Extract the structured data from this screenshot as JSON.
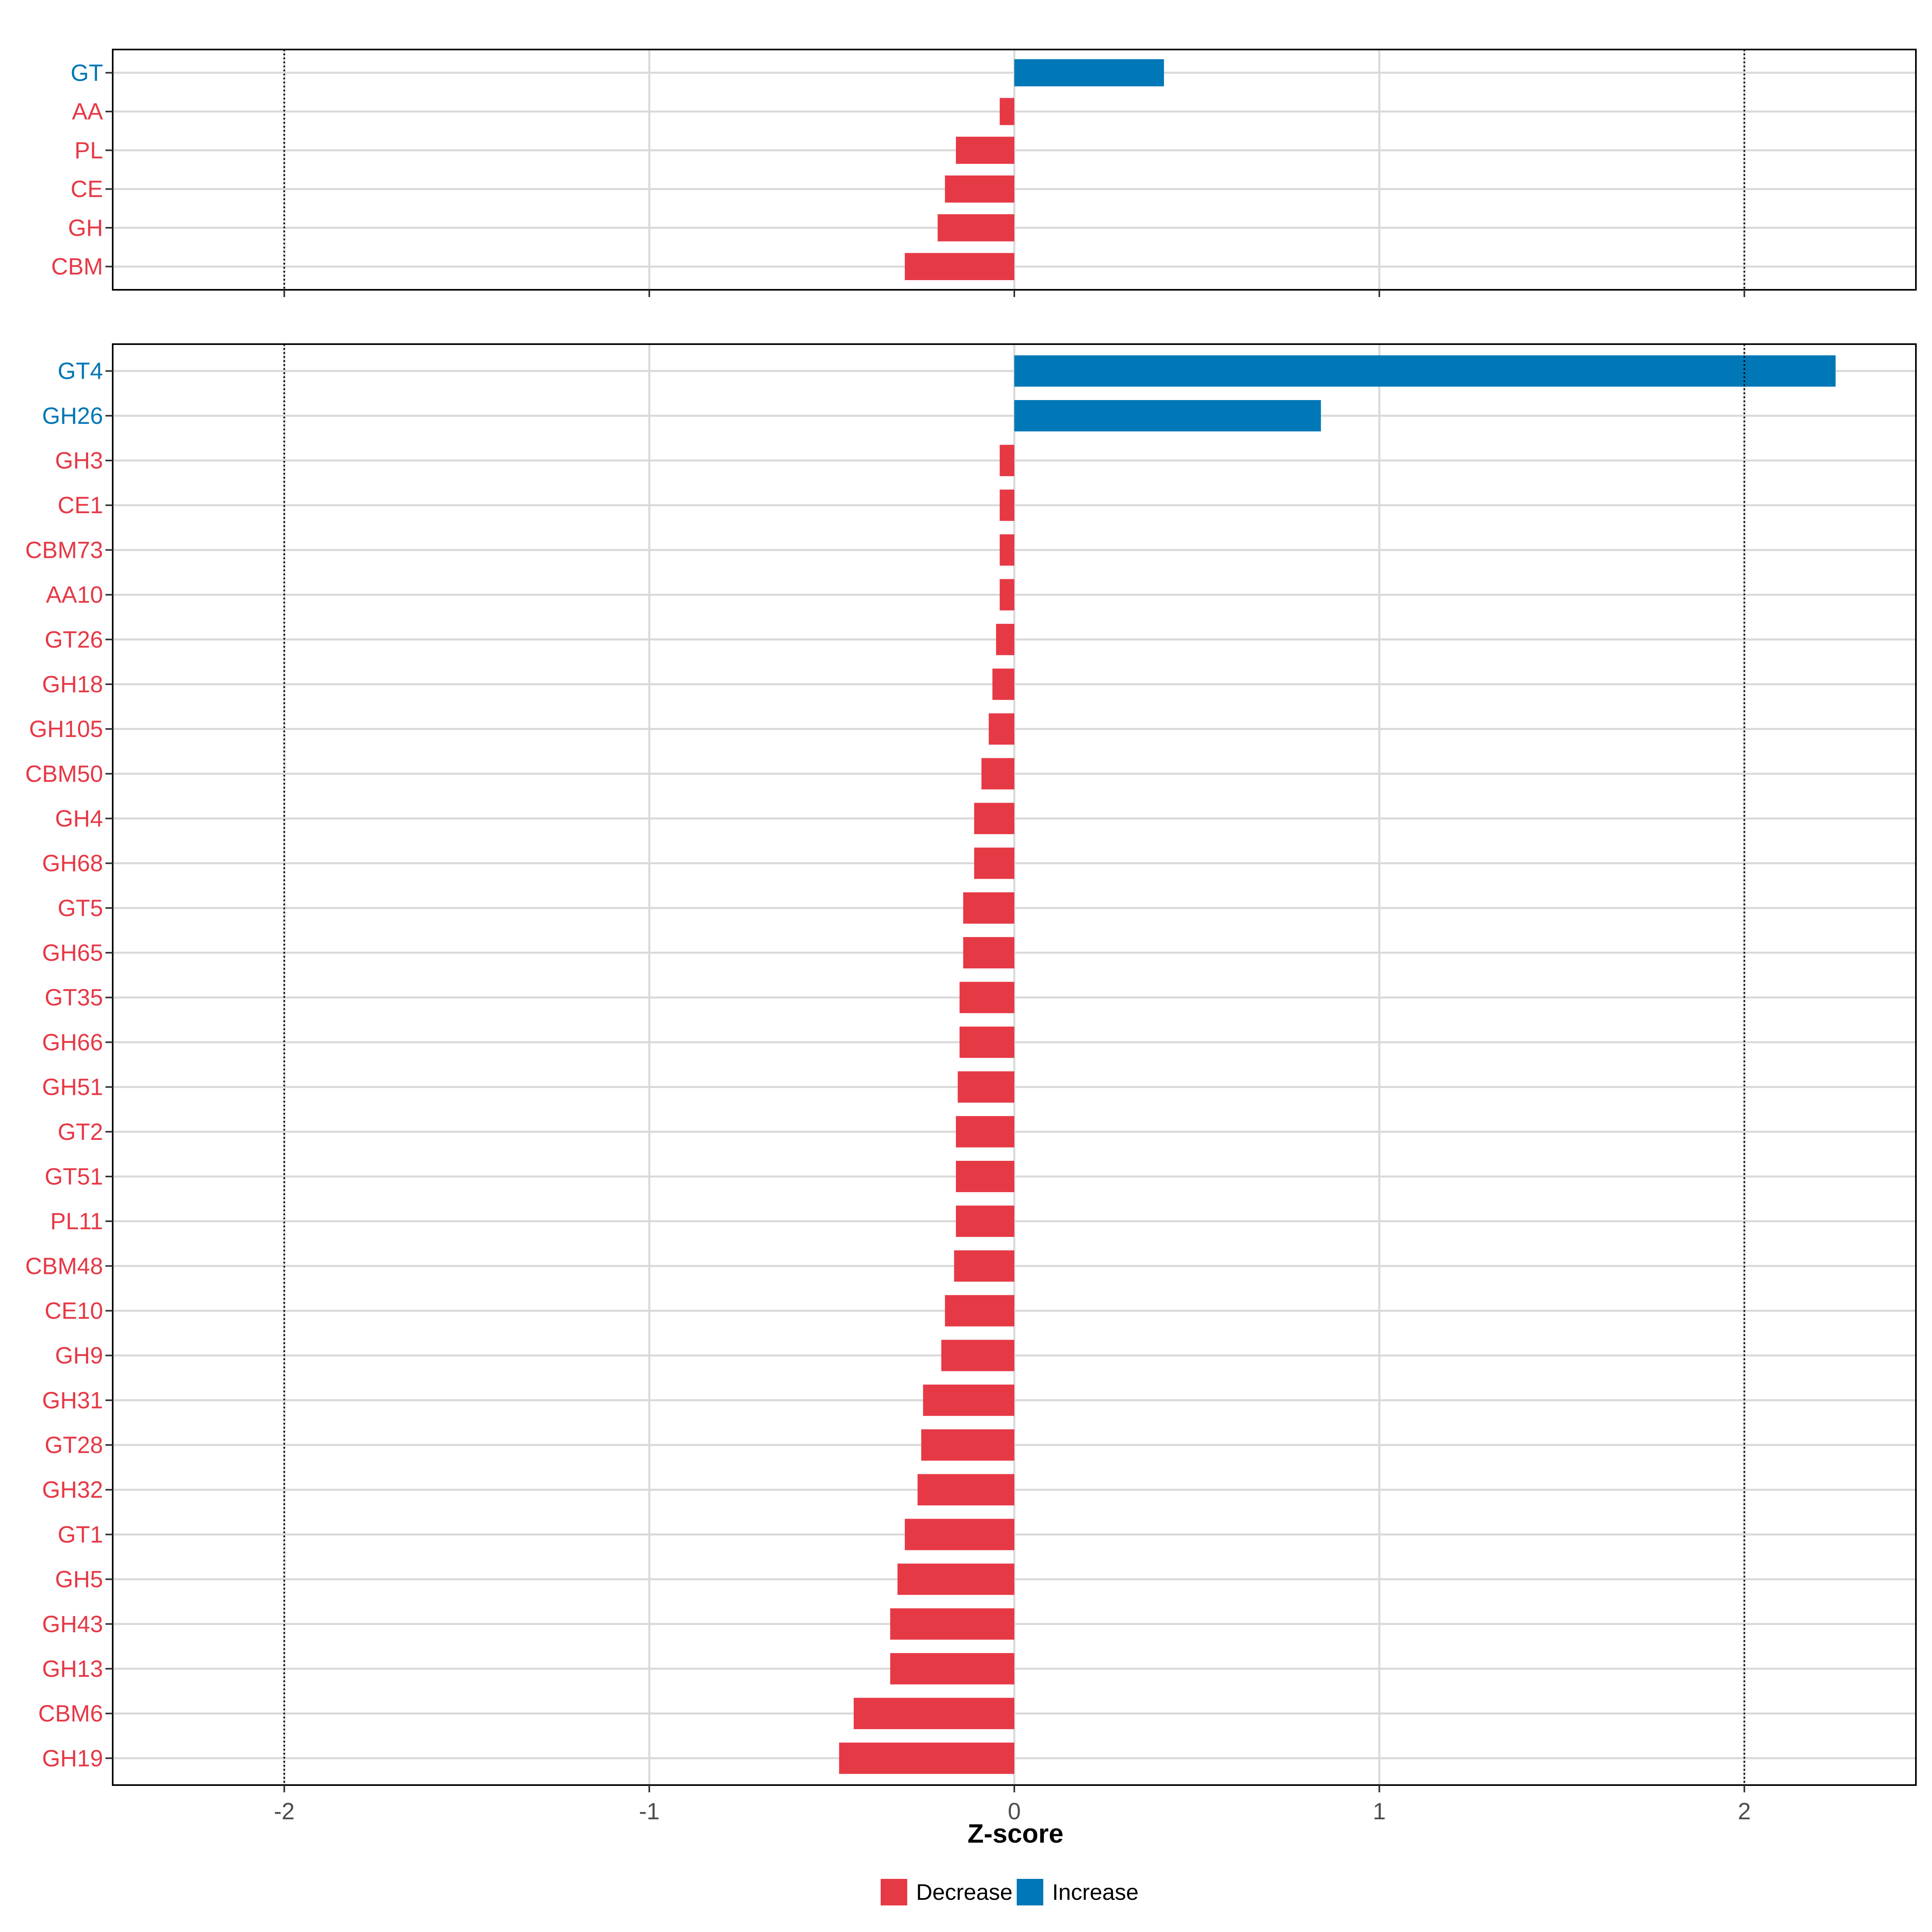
{
  "colors": {
    "decrease": "#E63946",
    "increase": "#0077B6",
    "grid": "#D9D9D9",
    "panel_border": "#000000",
    "text": "#000000"
  },
  "legend": {
    "position": "bottom",
    "items": [
      {
        "label": "Decrease",
        "color_key": "decrease"
      },
      {
        "label": "Increase",
        "color_key": "increase"
      }
    ]
  },
  "chart_data": {
    "type": "bar",
    "orientation": "horizontal",
    "xlabel": "Z-score",
    "xlim": [
      -2.47,
      2.47
    ],
    "xticks": [
      -2,
      -1,
      0,
      1,
      2
    ],
    "xtick_labels": [
      "-2",
      "-1",
      "0",
      "1",
      "2"
    ],
    "reference_lines": [
      -2,
      2
    ],
    "grid": true,
    "panels": [
      {
        "categories": [
          "GT",
          "AA",
          "PL",
          "CE",
          "GH",
          "CBM"
        ],
        "values": [
          0.41,
          -0.04,
          -0.16,
          -0.19,
          -0.21,
          -0.3
        ],
        "direction": [
          "Increase",
          "Decrease",
          "Decrease",
          "Decrease",
          "Decrease",
          "Decrease"
        ]
      },
      {
        "categories": [
          "GT4",
          "GH26",
          "GH3",
          "CE1",
          "CBM73",
          "AA10",
          "GT26",
          "GH18",
          "GH105",
          "CBM50",
          "GH4",
          "GH68",
          "GT5",
          "GH65",
          "GT35",
          "GH66",
          "GH51",
          "GT2",
          "GT51",
          "PL11",
          "CBM48",
          "CE10",
          "GH9",
          "GH31",
          "GT28",
          "GH32",
          "GT1",
          "GH5",
          "GH43",
          "GH13",
          "CBM6",
          "GH19"
        ],
        "values": [
          2.25,
          0.84,
          -0.04,
          -0.04,
          -0.04,
          -0.04,
          -0.05,
          -0.06,
          -0.07,
          -0.09,
          -0.11,
          -0.11,
          -0.14,
          -0.14,
          -0.15,
          -0.15,
          -0.155,
          -0.16,
          -0.16,
          -0.16,
          -0.165,
          -0.19,
          -0.2,
          -0.25,
          -0.255,
          -0.265,
          -0.3,
          -0.32,
          -0.34,
          -0.34,
          -0.44,
          -0.48
        ],
        "direction": [
          "Increase",
          "Increase",
          "Decrease",
          "Decrease",
          "Decrease",
          "Decrease",
          "Decrease",
          "Decrease",
          "Decrease",
          "Decrease",
          "Decrease",
          "Decrease",
          "Decrease",
          "Decrease",
          "Decrease",
          "Decrease",
          "Decrease",
          "Decrease",
          "Decrease",
          "Decrease",
          "Decrease",
          "Decrease",
          "Decrease",
          "Decrease",
          "Decrease",
          "Decrease",
          "Decrease",
          "Decrease",
          "Decrease",
          "Decrease",
          "Decrease",
          "Decrease"
        ]
      }
    ]
  }
}
